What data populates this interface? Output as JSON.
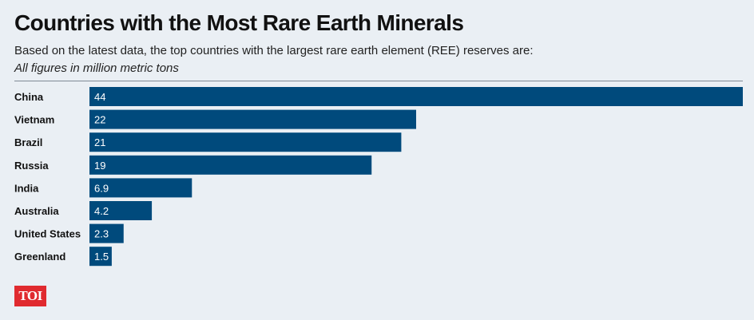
{
  "header": {
    "title": "Countries with the Most Rare Earth Minerals",
    "subtitle": "Based on the latest data, the top countries with the largest rare earth element (REE) reserves are:",
    "note": "All figures in million metric tons"
  },
  "colors": {
    "bar": "#004a7c",
    "background": "#eaeff4",
    "logo": "#e02a2f"
  },
  "chart_data": {
    "type": "bar",
    "orientation": "horizontal",
    "title": "Countries with the Most Rare Earth Minerals",
    "categories": [
      "China",
      "Vietnam",
      "Brazil",
      "Russia",
      "India",
      "Australia",
      "United States",
      "Greenland"
    ],
    "values": [
      44,
      22,
      21,
      19,
      6.9,
      4.2,
      2.3,
      1.5
    ],
    "labels": [
      "44",
      "22",
      "21",
      "19",
      "6.9",
      "4.2",
      "2.3",
      "1.5"
    ],
    "xlim": [
      0,
      44
    ],
    "grid": false,
    "legend": "none"
  },
  "logo": {
    "text": "TOI"
  }
}
